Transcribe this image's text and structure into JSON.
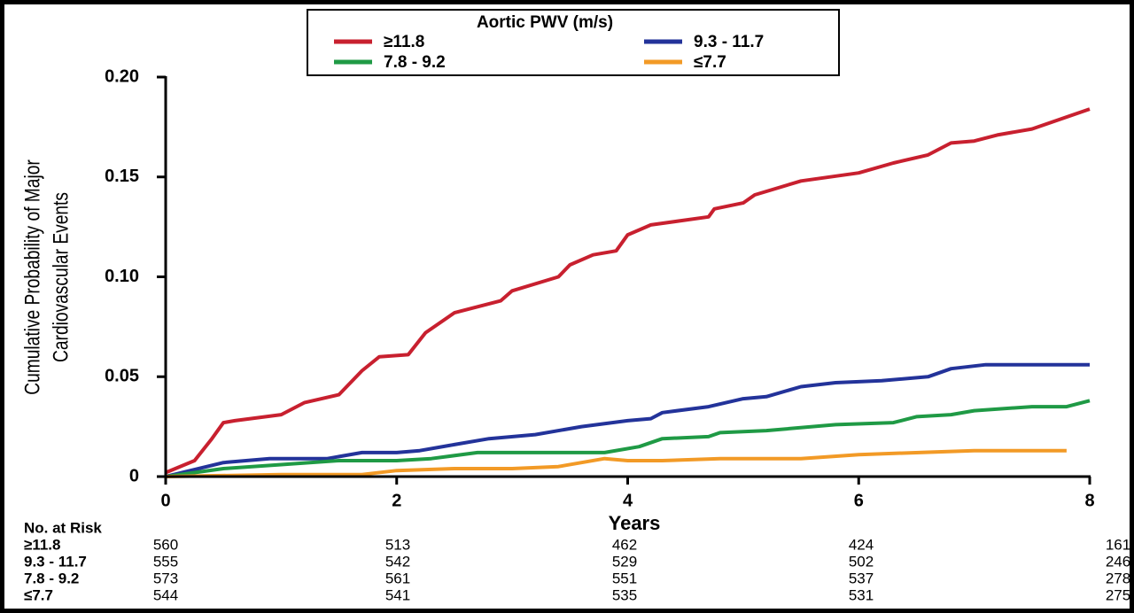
{
  "chart_data": {
    "type": "line",
    "legend_title": "Aortic PWV (m/s)",
    "ylabel": [
      "Cumulative Probability of Major",
      "Cardiovascular Events"
    ],
    "xlabel": "Years",
    "xlim": [
      0,
      8
    ],
    "xticks": [
      0,
      2,
      4,
      6,
      8
    ],
    "ylim": [
      0,
      0.2
    ],
    "yticks": [
      0,
      0.05,
      {
        "value": 0.1,
        "label": "0.10"
      },
      0.15,
      {
        "value": 0.2,
        "label": "0.20"
      }
    ],
    "series": [
      {
        "name": "≥11.8",
        "color": "#c8202f",
        "x": [
          0,
          0.25,
          0.4,
          0.5,
          0.6,
          1.0,
          1.2,
          1.5,
          1.7,
          1.85,
          2.1,
          2.25,
          2.5,
          2.9,
          3.0,
          3.4,
          3.5,
          3.7,
          3.9,
          4.0,
          4.2,
          4.7,
          4.75,
          5.0,
          5.1,
          5.5,
          6.0,
          6.3,
          6.6,
          6.8,
          7.0,
          7.2,
          7.5,
          8.0
        ],
        "values": [
          0.002,
          0.008,
          0.019,
          0.027,
          0.028,
          0.031,
          0.037,
          0.041,
          0.053,
          0.06,
          0.061,
          0.072,
          0.082,
          0.088,
          0.093,
          0.1,
          0.106,
          0.111,
          0.113,
          0.121,
          0.126,
          0.13,
          0.134,
          0.137,
          0.141,
          0.148,
          0.152,
          0.157,
          0.161,
          0.167,
          0.168,
          0.171,
          0.174,
          0.184
        ]
      },
      {
        "name": "9.3 - 11.7",
        "color": "#23339a",
        "x": [
          0,
          0.5,
          0.9,
          1.4,
          1.7,
          2.0,
          2.2,
          2.5,
          2.8,
          3.2,
          3.6,
          4.0,
          4.2,
          4.3,
          4.7,
          5.0,
          5.2,
          5.5,
          5.8,
          6.2,
          6.6,
          6.8,
          7.1,
          8.0
        ],
        "values": [
          0,
          0.007,
          0.009,
          0.009,
          0.012,
          0.012,
          0.013,
          0.016,
          0.019,
          0.021,
          0.025,
          0.028,
          0.029,
          0.032,
          0.035,
          0.039,
          0.04,
          0.045,
          0.047,
          0.048,
          0.05,
          0.054,
          0.056,
          0.056
        ]
      },
      {
        "name": "7.8 - 9.2",
        "color": "#1f9a45",
        "x": [
          0,
          0.5,
          1.0,
          1.5,
          2.0,
          2.3,
          2.7,
          3.0,
          3.5,
          3.8,
          4.1,
          4.3,
          4.7,
          4.8,
          5.2,
          5.8,
          6.3,
          6.5,
          6.8,
          7.0,
          7.5,
          7.8,
          8.0
        ],
        "values": [
          0,
          0.004,
          0.006,
          0.008,
          0.008,
          0.009,
          0.012,
          0.012,
          0.012,
          0.012,
          0.015,
          0.019,
          0.02,
          0.022,
          0.023,
          0.026,
          0.027,
          0.03,
          0.031,
          0.033,
          0.035,
          0.035,
          0.038
        ]
      },
      {
        "name": "≤7.7",
        "color": "#f29a26",
        "x": [
          0,
          1.0,
          1.7,
          2.0,
          2.5,
          3.0,
          3.4,
          3.6,
          3.8,
          4.0,
          4.3,
          4.8,
          5.0,
          5.5,
          6.0,
          7.0,
          7.8
        ],
        "values": [
          0,
          0.001,
          0.001,
          0.003,
          0.004,
          0.004,
          0.005,
          0.007,
          0.009,
          0.008,
          0.008,
          0.009,
          0.009,
          0.009,
          0.011,
          0.013,
          0.013
        ]
      }
    ],
    "risk_table": {
      "title": "No. at Risk",
      "rows": [
        {
          "label": "≥11.8",
          "values": [
            560,
            513,
            462,
            424,
            161
          ]
        },
        {
          "label": "9.3 - 11.7",
          "values": [
            555,
            542,
            529,
            502,
            246
          ]
        },
        {
          "label": "7.8 - 9.2",
          "values": [
            573,
            561,
            551,
            537,
            278
          ]
        },
        {
          "label": "≤7.7",
          "values": [
            544,
            541,
            535,
            531,
            275
          ]
        }
      ]
    }
  }
}
